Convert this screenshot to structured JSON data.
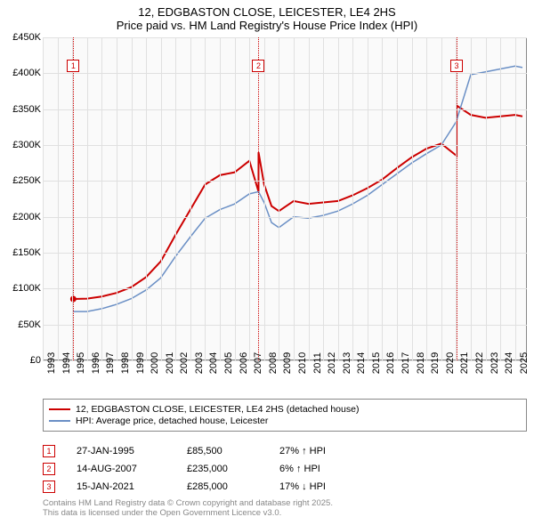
{
  "title_line1": "12, EDGBASTON CLOSE, LEICESTER, LE4 2HS",
  "title_line2": "Price paid vs. HM Land Registry's House Price Index (HPI)",
  "chart": {
    "type": "line",
    "background_color": "#fafafa",
    "grid_color": "#e0e0e0",
    "border_color": "#888888",
    "x_years": [
      1993,
      1994,
      1995,
      1996,
      1997,
      1998,
      1999,
      2000,
      2001,
      2002,
      2003,
      2004,
      2005,
      2006,
      2007,
      2008,
      2009,
      2010,
      2011,
      2012,
      2013,
      2014,
      2015,
      2016,
      2017,
      2018,
      2019,
      2020,
      2021,
      2022,
      2023,
      2024,
      2025
    ],
    "y_ticks": [
      0,
      50000,
      100000,
      150000,
      200000,
      250000,
      300000,
      350000,
      400000,
      450000
    ],
    "y_tick_labels": [
      "£0",
      "£50K",
      "£100K",
      "£150K",
      "£200K",
      "£250K",
      "£300K",
      "£350K",
      "£400K",
      "£450K"
    ],
    "ylim": [
      0,
      450000
    ],
    "xlim": [
      1993,
      2025.8
    ],
    "series": [
      {
        "name": "12, EDGBASTON CLOSE, LEICESTER, LE4 2HS (detached house)",
        "color": "#cc0000",
        "width": 2,
        "data": [
          [
            1995.07,
            85500
          ],
          [
            1996,
            86000
          ],
          [
            1997,
            89000
          ],
          [
            1998,
            94000
          ],
          [
            1999,
            102000
          ],
          [
            2000,
            116000
          ],
          [
            2001,
            138000
          ],
          [
            2002,
            175000
          ],
          [
            2003,
            210000
          ],
          [
            2004,
            245000
          ],
          [
            2005,
            258000
          ],
          [
            2006,
            262000
          ],
          [
            2007,
            278000
          ],
          [
            2007.62,
            235000
          ],
          [
            2007.62,
            290000
          ],
          [
            2008,
            245000
          ],
          [
            2008.5,
            215000
          ],
          [
            2009,
            208000
          ],
          [
            2010,
            222000
          ],
          [
            2011,
            218000
          ],
          [
            2012,
            220000
          ],
          [
            2013,
            222000
          ],
          [
            2014,
            230000
          ],
          [
            2015,
            240000
          ],
          [
            2016,
            252000
          ],
          [
            2017,
            268000
          ],
          [
            2018,
            283000
          ],
          [
            2019,
            295000
          ],
          [
            2020,
            302000
          ],
          [
            2021.04,
            285000
          ],
          [
            2021.04,
            355000
          ],
          [
            2022,
            342000
          ],
          [
            2023,
            338000
          ],
          [
            2024,
            340000
          ],
          [
            2025,
            342000
          ],
          [
            2025.5,
            340000
          ]
        ]
      },
      {
        "name": "HPI: Average price, detached house, Leicester",
        "color": "#6a8fc5",
        "width": 1.5,
        "data": [
          [
            1995,
            68000
          ],
          [
            1996,
            68000
          ],
          [
            1997,
            72000
          ],
          [
            1998,
            78000
          ],
          [
            1999,
            86000
          ],
          [
            2000,
            98000
          ],
          [
            2001,
            115000
          ],
          [
            2002,
            145000
          ],
          [
            2003,
            172000
          ],
          [
            2004,
            198000
          ],
          [
            2005,
            210000
          ],
          [
            2006,
            218000
          ],
          [
            2007,
            232000
          ],
          [
            2007.62,
            235000
          ],
          [
            2008,
            220000
          ],
          [
            2008.5,
            192000
          ],
          [
            2009,
            185000
          ],
          [
            2010,
            200000
          ],
          [
            2011,
            198000
          ],
          [
            2012,
            202000
          ],
          [
            2013,
            208000
          ],
          [
            2014,
            218000
          ],
          [
            2015,
            230000
          ],
          [
            2016,
            245000
          ],
          [
            2017,
            260000
          ],
          [
            2018,
            275000
          ],
          [
            2019,
            288000
          ],
          [
            2020,
            300000
          ],
          [
            2021,
            332000
          ],
          [
            2022,
            398000
          ],
          [
            2023,
            402000
          ],
          [
            2024,
            406000
          ],
          [
            2025,
            410000
          ],
          [
            2025.5,
            408000
          ]
        ]
      }
    ],
    "markers": [
      {
        "n": "1",
        "x": 1995.07,
        "label_y": 410000
      },
      {
        "n": "2",
        "x": 2007.62,
        "label_y": 410000
      },
      {
        "n": "3",
        "x": 2021.04,
        "label_y": 410000
      }
    ]
  },
  "legend": {
    "items": [
      {
        "color": "#cc0000",
        "width": 2,
        "label": "12, EDGBASTON CLOSE, LEICESTER, LE4 2HS (detached house)"
      },
      {
        "color": "#6a8fc5",
        "width": 1.5,
        "label": "HPI: Average price, detached house, Leicester"
      }
    ]
  },
  "events": [
    {
      "n": "1",
      "date": "27-JAN-1995",
      "price": "£85,500",
      "delta": "27% ↑ HPI"
    },
    {
      "n": "2",
      "date": "14-AUG-2007",
      "price": "£235,000",
      "delta": "6% ↑ HPI"
    },
    {
      "n": "3",
      "date": "15-JAN-2021",
      "price": "£285,000",
      "delta": "17% ↓ HPI"
    }
  ],
  "footer_line1": "Contains HM Land Registry data © Crown copyright and database right 2025.",
  "footer_line2": "This data is licensed under the Open Government Licence v3.0."
}
